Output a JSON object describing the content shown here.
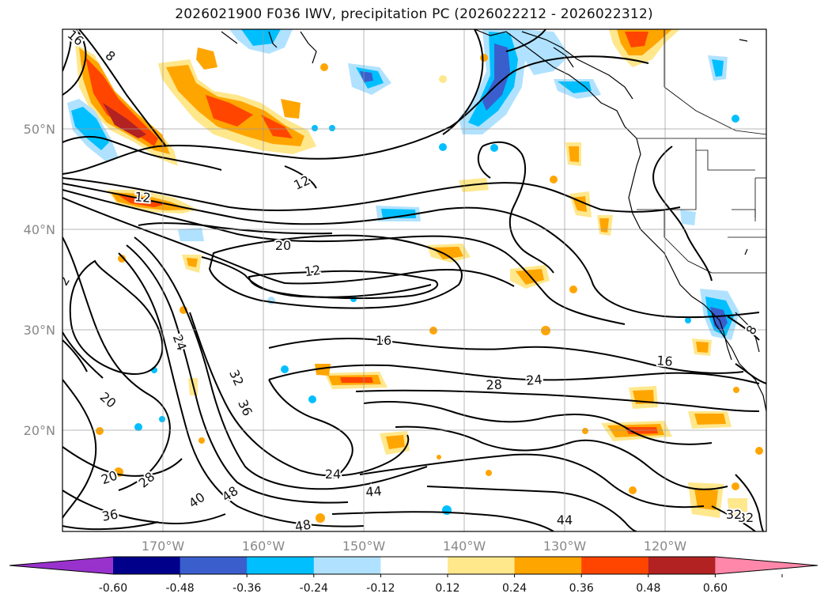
{
  "title": "2026021900 F036 IWV, precipitation PC (2026022212 - 2026022312)",
  "map": {
    "lat_labels": [
      "50°N",
      "40°N",
      "30°N",
      "20°N"
    ],
    "lon_labels": [
      "170°W",
      "160°W",
      "150°W",
      "140°W",
      "130°W",
      "120°W"
    ],
    "contour_labels": [
      "16",
      "8",
      "12",
      "12",
      "20",
      "12",
      "16",
      "24",
      "28",
      "24",
      "16",
      "20",
      "20",
      "28",
      "36",
      "40",
      "48",
      "24",
      "44",
      "44",
      "48",
      "32",
      "32",
      "36",
      "32",
      "8",
      "2"
    ],
    "grid": true
  },
  "colorbar": {
    "ticks": [
      "-0.60",
      "-0.48",
      "-0.36",
      "-0.24",
      "-0.12",
      "0.12",
      "0.24",
      "0.36",
      "0.48",
      "0.60"
    ],
    "colors": [
      "#9932CC",
      "#00008B",
      "#3A5FCD",
      "#00BFFF",
      "#B0E2FF",
      "#FFFFFF",
      "#FFE78C",
      "#FFA500",
      "#FF4500",
      "#B22222",
      "#FF88AA"
    ],
    "extend": "both"
  }
}
